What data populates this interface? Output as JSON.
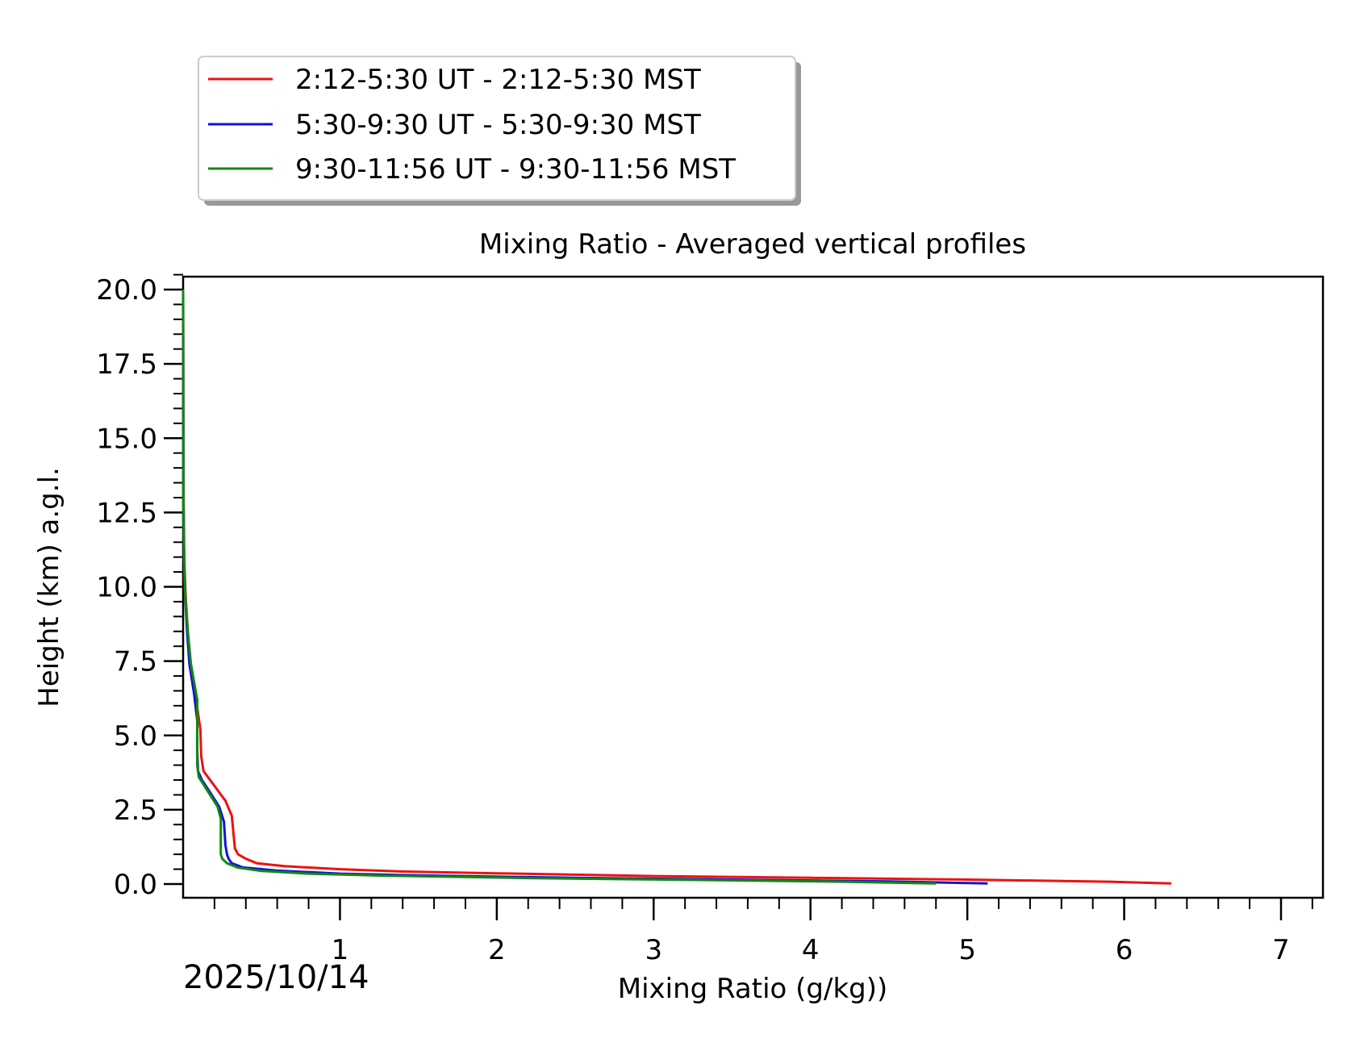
{
  "chart_data": {
    "type": "line",
    "title": "Mixing Ratio - Averaged vertical profiles",
    "xlabel": "Mixing Ratio (g/kg))",
    "ylabel": "Height (km) a.g.l.",
    "date_label": "2025/10/14",
    "xlim": [
      0,
      7.3
    ],
    "ylim": [
      -0.5,
      20.5
    ],
    "x_ticks": [
      1,
      2,
      3,
      4,
      5,
      6,
      7
    ],
    "x_tick_labels": [
      "1",
      "2",
      "3",
      "4",
      "5",
      "6",
      "7"
    ],
    "y_ticks": [
      0,
      2.5,
      5,
      7.5,
      10,
      12.5,
      15,
      17.5,
      20
    ],
    "y_tick_labels": [
      "0.0",
      "2.5",
      "5.0",
      "7.5",
      "10.0",
      "12.5",
      "15.0",
      "17.5",
      "20.0"
    ],
    "legend_position": "above-left",
    "series": [
      {
        "name": "2:12-5:30 UT - 2:12-5:30 MST",
        "color": "#ee1111",
        "points": [
          [
            6.3,
            0.02
          ],
          [
            5.9,
            0.08
          ],
          [
            5.0,
            0.15
          ],
          [
            4.0,
            0.21
          ],
          [
            3.0,
            0.27
          ],
          [
            2.0,
            0.36
          ],
          [
            1.4,
            0.42
          ],
          [
            1.0,
            0.5
          ],
          [
            0.65,
            0.6
          ],
          [
            0.47,
            0.7
          ],
          [
            0.4,
            0.85
          ],
          [
            0.35,
            1.0
          ],
          [
            0.33,
            1.2
          ],
          [
            0.31,
            2.3
          ],
          [
            0.27,
            2.8
          ],
          [
            0.2,
            3.3
          ],
          [
            0.13,
            3.8
          ],
          [
            0.115,
            4.3
          ],
          [
            0.11,
            5.2
          ],
          [
            0.08,
            6.3
          ],
          [
            0.05,
            7.3
          ],
          [
            0.03,
            8.5
          ],
          [
            0.015,
            9.8
          ],
          [
            0.007,
            11
          ],
          [
            0.003,
            13
          ],
          [
            0.001,
            16
          ],
          [
            0.0,
            20
          ]
        ]
      },
      {
        "name": "5:30-9:30 UT - 5:30-9:30 MST",
        "color": "#1111dd",
        "points": [
          [
            5.13,
            0.02
          ],
          [
            4.5,
            0.09
          ],
          [
            3.5,
            0.15
          ],
          [
            2.5,
            0.21
          ],
          [
            1.5,
            0.29
          ],
          [
            1.0,
            0.35
          ],
          [
            0.6,
            0.45
          ],
          [
            0.38,
            0.56
          ],
          [
            0.31,
            0.7
          ],
          [
            0.29,
            0.85
          ],
          [
            0.28,
            1.0
          ],
          [
            0.27,
            1.3
          ],
          [
            0.26,
            2.1
          ],
          [
            0.23,
            2.6
          ],
          [
            0.17,
            3.1
          ],
          [
            0.12,
            3.5
          ],
          [
            0.095,
            3.8
          ],
          [
            0.09,
            4.5
          ],
          [
            0.09,
            5.5
          ],
          [
            0.07,
            6.4
          ],
          [
            0.04,
            7.4
          ],
          [
            0.025,
            8.5
          ],
          [
            0.012,
            9.8
          ],
          [
            0.006,
            11
          ],
          [
            0.002,
            13
          ],
          [
            0.0,
            20
          ]
        ]
      },
      {
        "name": "9:30-11:56 UT - 9:30-11:56 MST",
        "color": "#118811",
        "points": [
          [
            4.8,
            0.02
          ],
          [
            4.2,
            0.08
          ],
          [
            3.2,
            0.14
          ],
          [
            2.2,
            0.2
          ],
          [
            1.3,
            0.28
          ],
          [
            0.8,
            0.35
          ],
          [
            0.5,
            0.44
          ],
          [
            0.35,
            0.55
          ],
          [
            0.28,
            0.7
          ],
          [
            0.25,
            0.85
          ],
          [
            0.24,
            1.0
          ],
          [
            0.24,
            1.5
          ],
          [
            0.24,
            2.2
          ],
          [
            0.22,
            2.6
          ],
          [
            0.16,
            3.1
          ],
          [
            0.1,
            3.6
          ],
          [
            0.09,
            4.0
          ],
          [
            0.09,
            5.2
          ],
          [
            0.09,
            6.2
          ],
          [
            0.05,
            7.4
          ],
          [
            0.03,
            8.5
          ],
          [
            0.012,
            9.8
          ],
          [
            0.006,
            11
          ],
          [
            0.002,
            13
          ],
          [
            0.0,
            20
          ]
        ]
      }
    ]
  }
}
